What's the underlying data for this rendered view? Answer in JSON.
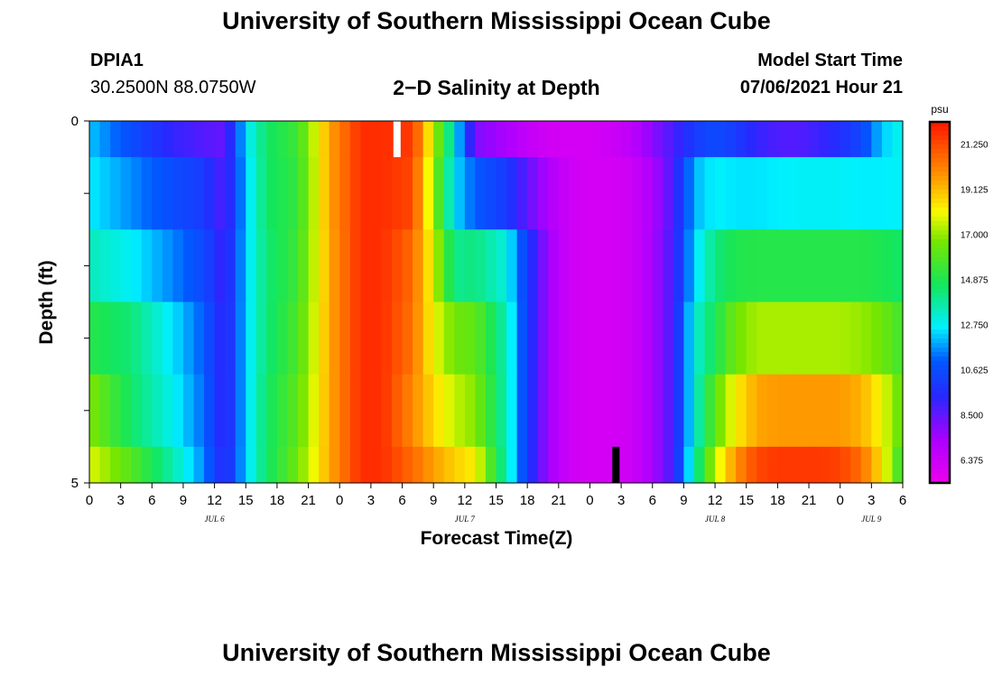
{
  "header": {
    "title_top": "University of Southern Mississippi Ocean Cube",
    "title_bottom": "University of Southern Mississippi Ocean Cube",
    "station_id": "DPIA1",
    "station_coords": "30.2500N  88.0750W",
    "chart_title": "2−D Salinity at Depth",
    "model_start_label": "Model Start Time",
    "model_start_value": "07/06/2021 Hour 21"
  },
  "colors": {
    "axis": "#000000",
    "day_marker": "#ffffff",
    "now_marker": "#000000"
  },
  "chart_data": {
    "type": "heatmap",
    "title": "2−D Salinity at Depth",
    "xlabel": "Forecast Time(Z)",
    "ylabel": "Depth (ft)",
    "units": "psu",
    "x_tick_labels": [
      "0",
      "3",
      "6",
      "9",
      "12",
      "15",
      "18",
      "21",
      "0",
      "3",
      "6",
      "9",
      "12",
      "15",
      "18",
      "21",
      "0",
      "3",
      "6",
      "9",
      "12",
      "15",
      "18",
      "21",
      "0",
      "3",
      "6"
    ],
    "x_range_hours": [
      0,
      78
    ],
    "y_tick_labels": [
      "0",
      "5"
    ],
    "y_range_ft": [
      0,
      5
    ],
    "date_labels": [
      {
        "text": "JUL 6",
        "hour": 12
      },
      {
        "text": "JUL 7",
        "hour": 36
      },
      {
        "text": "JUL 8",
        "hour": 60
      },
      {
        "text": "JUL 9",
        "hour": 75
      }
    ],
    "colorbar": {
      "label": "psu",
      "min": 5.3,
      "max": 22.3,
      "ticks": [
        "21.250",
        "19.125",
        "17.000",
        "14.875",
        "12.750",
        "10.625",
        "8.500",
        "6.375"
      ]
    },
    "markers": [
      {
        "name": "day-marker",
        "hour": 29.5,
        "depth_from": 0,
        "depth_to": 0.5
      },
      {
        "name": "now-marker",
        "hour": 50.5,
        "depth_from": 4.5,
        "depth_to": 5
      }
    ],
    "depth_rows": [
      0.25,
      1.0,
      2.0,
      3.0,
      4.0,
      4.75
    ],
    "salinity_keypoints_hours": [
      0,
      4,
      8,
      11,
      13,
      15,
      17,
      20,
      23,
      26,
      28,
      31,
      33,
      35,
      37,
      40,
      42,
      44,
      46,
      48,
      50,
      52,
      54,
      56,
      58,
      60,
      62,
      64,
      66,
      68,
      70,
      72,
      74,
      76,
      78
    ],
    "salinity_rows": [
      {
        "depth": 0.25,
        "values": [
          12.2,
          10.6,
          9.2,
          8.7,
          8.4,
          12.5,
          14.5,
          15.5,
          19.5,
          21.8,
          21.8,
          21.6,
          17.5,
          13.0,
          8.0,
          7.3,
          6.6,
          6.2,
          6.1,
          6.1,
          6.3,
          6.8,
          7.8,
          8.9,
          10.0,
          10.6,
          10.0,
          9.2,
          8.8,
          8.7,
          9.1,
          9.6,
          10.4,
          12.2,
          13.0
        ]
      },
      {
        "depth": 1.0,
        "values": [
          12.6,
          11.6,
          10.6,
          10.0,
          8.6,
          12.2,
          14.5,
          15.3,
          19.5,
          21.8,
          21.8,
          21.3,
          17.0,
          12.5,
          11.0,
          10.0,
          8.5,
          7.2,
          6.3,
          6.1,
          6.1,
          6.3,
          7.2,
          8.9,
          12.0,
          12.7,
          12.5,
          12.5,
          12.6,
          12.7,
          12.7,
          12.7,
          12.6,
          12.6,
          12.7
        ]
      },
      {
        "depth": 2.0,
        "values": [
          13.5,
          12.7,
          11.5,
          10.5,
          8.9,
          12.3,
          14.3,
          15.5,
          19.4,
          21.8,
          21.8,
          20.6,
          17.8,
          14.0,
          14.2,
          13.0,
          10.0,
          7.5,
          6.3,
          6.1,
          6.1,
          6.3,
          7.3,
          9.0,
          12.3,
          14.2,
          14.9,
          15.0,
          15.0,
          15.0,
          15.0,
          15.0,
          15.0,
          14.8,
          14.5
        ]
      },
      {
        "depth": 3.0,
        "values": [
          15.0,
          14.3,
          12.5,
          11.0,
          9.0,
          12.3,
          14.3,
          15.8,
          19.4,
          21.8,
          21.8,
          20.4,
          18.0,
          16.5,
          16.2,
          13.5,
          10.0,
          7.5,
          6.3,
          6.1,
          6.1,
          6.3,
          7.3,
          9.0,
          13.0,
          14.8,
          16.5,
          17.2,
          17.2,
          17.2,
          17.2,
          17.2,
          17.0,
          16.5,
          15.5
        ]
      },
      {
        "depth": 4.0,
        "values": [
          16.8,
          14.5,
          12.8,
          11.2,
          9.0,
          12.3,
          14.5,
          16.2,
          19.4,
          21.8,
          21.8,
          20.0,
          18.6,
          17.5,
          16.8,
          13.5,
          10.0,
          7.5,
          6.3,
          6.1,
          6.1,
          6.3,
          7.3,
          9.0,
          13.0,
          16.2,
          18.2,
          19.5,
          19.7,
          19.7,
          19.7,
          19.7,
          19.3,
          18.0,
          16.0
        ]
      },
      {
        "depth": 4.75,
        "values": [
          17.8,
          16.0,
          13.6,
          11.5,
          9.2,
          12.3,
          14.5,
          16.5,
          19.4,
          21.8,
          21.8,
          20.6,
          19.6,
          18.8,
          18.2,
          13.5,
          10.0,
          7.5,
          6.3,
          6.1,
          6.1,
          6.3,
          7.3,
          9.0,
          13.5,
          17.5,
          19.8,
          21.3,
          21.6,
          21.6,
          21.6,
          21.4,
          20.5,
          18.5,
          15.0
        ]
      }
    ]
  }
}
